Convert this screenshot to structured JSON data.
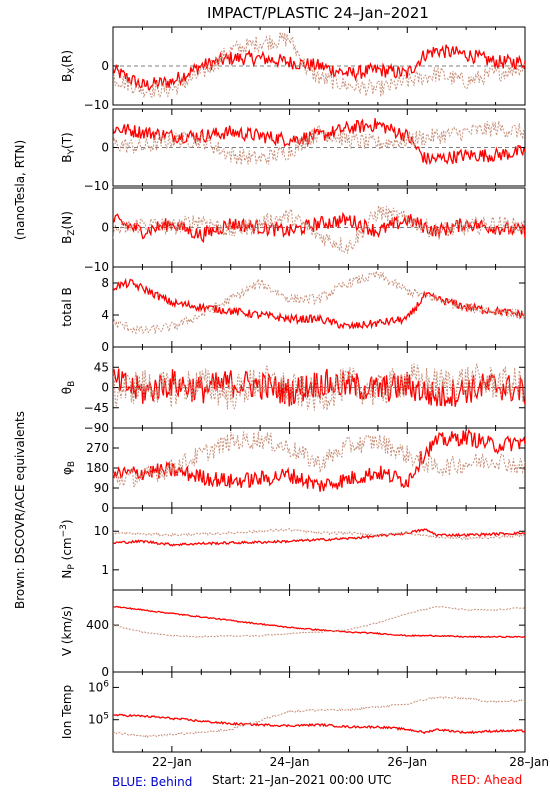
{
  "title": "IMPACT/PLASTIC   24–Jan–2021",
  "left_label": "(nanoTesla, RTN)",
  "side_label": "Brown: DSCOVR/ACE equivalents",
  "footer": {
    "behind": "BLUE: Behind",
    "start": "Start: 21–Jan–2021 00:00 UTC",
    "ahead": "RED: Ahead"
  },
  "colors": {
    "ahead": "#ff0000",
    "dscovr": "#c8907a",
    "behind": "#0000cc",
    "side_label": "#c8907a"
  },
  "x_axis": {
    "ticks": [
      "22–Jan",
      "24–Jan",
      "26–Jan",
      "28–Jan"
    ],
    "tick_days": [
      22,
      24,
      26,
      28
    ],
    "minor_days": [
      21.5,
      22.5,
      23,
      23.5,
      24.5,
      25,
      25.5,
      26.5,
      27,
      27.5
    ],
    "range_days": [
      21,
      28
    ]
  },
  "chart_data": {
    "type": "line",
    "x_unit": "day of Jan 2021",
    "panels": [
      {
        "label": "B_X(R)",
        "ylim": [
          -10,
          10
        ],
        "ticks": [
          "0",
          "−10"
        ],
        "tick_values": [
          0,
          -10
        ],
        "grid": [
          0
        ],
        "series": [
          {
            "name": "Ahead",
            "x": [
              21.0,
              21.5,
              22.0,
              22.5,
              23.0,
              23.5,
              24.0,
              24.5,
              25.0,
              25.5,
              26.0,
              26.3,
              26.5,
              27.0,
              27.5,
              28.0
            ],
            "y": [
              -1,
              -5,
              -4,
              0,
              2,
              2,
              1,
              0,
              -2,
              -1,
              -2,
              3,
              4,
              3,
              1,
              1
            ]
          },
          {
            "name": "DSCOVR/ACE",
            "x": [
              21.0,
              21.5,
              22.0,
              22.5,
              23.0,
              23.5,
              24.0,
              24.3,
              24.5,
              25.0,
              25.5,
              26.0,
              26.5,
              27.0,
              27.5,
              28.0
            ],
            "y": [
              -3,
              -6,
              -6,
              -2,
              4,
              6,
              7,
              -1,
              -3,
              -5,
              -6,
              -4,
              -2,
              -4,
              -2,
              0
            ]
          }
        ]
      },
      {
        "label": "B_Y(T)",
        "ylim": [
          -10,
          10
        ],
        "ticks": [
          "0",
          "−10"
        ],
        "tick_values": [
          0,
          -10
        ],
        "grid": [
          0
        ],
        "series": [
          {
            "name": "Ahead",
            "x": [
              21.0,
              21.5,
              22.0,
              22.5,
              23.0,
              23.5,
              24.0,
              24.5,
              25.0,
              25.5,
              26.0,
              26.3,
              26.5,
              27.0,
              27.5,
              28.0
            ],
            "y": [
              5,
              4,
              3,
              3,
              4,
              3,
              2,
              3,
              5,
              6,
              3,
              -3,
              -3,
              -2,
              -2,
              -1
            ]
          },
          {
            "name": "DSCOVR/ACE",
            "x": [
              21.0,
              21.5,
              22.0,
              22.5,
              23.0,
              23.5,
              24.0,
              24.5,
              25.0,
              25.5,
              26.0,
              26.5,
              27.0,
              27.5,
              28.0
            ],
            "y": [
              1,
              0,
              2,
              2,
              -2,
              -3,
              -1,
              4,
              2,
              1,
              2,
              3,
              4,
              5,
              4
            ]
          }
        ]
      },
      {
        "label": "B_Z(N)",
        "ylim": [
          -10,
          10
        ],
        "ticks": [
          "0",
          "−10"
        ],
        "tick_values": [
          0,
          -10
        ],
        "grid": [
          0
        ],
        "series": [
          {
            "name": "Ahead",
            "x": [
              21.0,
              21.5,
              22.0,
              22.5,
              23.0,
              23.5,
              24.0,
              24.5,
              25.0,
              25.5,
              26.0,
              26.5,
              27.0,
              27.5,
              28.0
            ],
            "y": [
              2,
              -1,
              1,
              -2,
              1,
              0,
              -1,
              1,
              2,
              -1,
              2,
              -1,
              1,
              0,
              -1
            ]
          },
          {
            "name": "DSCOVR/ACE",
            "x": [
              21.0,
              21.5,
              22.0,
              22.5,
              23.0,
              23.5,
              24.0,
              24.5,
              25.0,
              25.5,
              26.0,
              26.5,
              27.0,
              27.5,
              28.0
            ],
            "y": [
              -1,
              1,
              0,
              2,
              -1,
              1,
              3,
              -2,
              -5,
              4,
              2,
              -1,
              0,
              1,
              0
            ]
          }
        ]
      },
      {
        "label": "total B",
        "ylim": [
          0,
          10
        ],
        "ticks": [
          "8",
          "4",
          "0"
        ],
        "tick_values": [
          8,
          4,
          0
        ],
        "grid": [],
        "series": [
          {
            "name": "Ahead",
            "x": [
              21.0,
              21.3,
              21.6,
              22.0,
              22.5,
              23.0,
              23.5,
              24.0,
              24.5,
              25.0,
              25.5,
              26.0,
              26.3,
              26.5,
              27.0,
              27.5,
              28.0
            ],
            "y": [
              7.5,
              8,
              7,
              5.5,
              5,
              4.5,
              4,
              3.5,
              3.5,
              2.5,
              3,
              3.5,
              6.5,
              6,
              5,
              4.5,
              4
            ]
          },
          {
            "name": "DSCOVR/ACE",
            "x": [
              21.0,
              21.5,
              22.0,
              22.5,
              23.0,
              23.5,
              24.0,
              24.5,
              25.0,
              25.5,
              26.0,
              26.5,
              27.0,
              27.5,
              28.0
            ],
            "y": [
              3,
              2,
              2.5,
              4,
              6,
              8,
              6,
              6,
              8,
              9,
              7,
              6,
              5,
              4.5,
              4
            ]
          }
        ]
      },
      {
        "label": "θ_B",
        "ylim": [
          -90,
          90
        ],
        "ticks": [
          "45",
          "0",
          "−45",
          "−90"
        ],
        "tick_values": [
          45,
          0,
          -45,
          -90
        ],
        "grid": [
          0
        ],
        "series": [
          {
            "name": "Ahead",
            "x": [
              21.0,
              21.5,
              22.0,
              22.5,
              23.0,
              23.5,
              24.0,
              24.5,
              25.0,
              25.5,
              26.0,
              26.5,
              27.0,
              27.5,
              28.0
            ],
            "y": [
              15,
              -10,
              10,
              -5,
              10,
              5,
              -10,
              10,
              5,
              -5,
              5,
              -20,
              -5,
              5,
              -10
            ]
          },
          {
            "name": "DSCOVR/ACE",
            "x": [
              21.0,
              21.5,
              22.0,
              22.5,
              23.0,
              23.5,
              24.0,
              24.5,
              25.0,
              25.5,
              26.0,
              26.5,
              27.0,
              27.5,
              28.0
            ],
            "y": [
              -10,
              5,
              -5,
              10,
              -15,
              15,
              -5,
              -20,
              10,
              -10,
              20,
              5,
              15,
              10,
              5
            ]
          }
        ]
      },
      {
        "label": "φ_B",
        "ylim": [
          0,
          360
        ],
        "ticks": [
          "270",
          "180",
          "90",
          "0"
        ],
        "tick_values": [
          270,
          180,
          90,
          0
        ],
        "grid": [],
        "series": [
          {
            "name": "Ahead",
            "x": [
              21.0,
              21.5,
              22.0,
              22.5,
              23.0,
              23.5,
              24.0,
              24.5,
              25.0,
              25.5,
              26.0,
              26.3,
              26.5,
              27.0,
              27.5,
              28.0
            ],
            "y": [
              150,
              160,
              170,
              140,
              120,
              130,
              150,
              100,
              130,
              160,
              120,
              250,
              300,
              320,
              280,
              300
            ]
          },
          {
            "name": "DSCOVR/ACE",
            "x": [
              21.0,
              21.5,
              22.0,
              22.5,
              23.0,
              23.5,
              24.0,
              24.5,
              25.0,
              25.5,
              26.0,
              26.5,
              27.0,
              27.5,
              28.0
            ],
            "y": [
              130,
              140,
              180,
              240,
              300,
              310,
              270,
              200,
              280,
              300,
              240,
              180,
              200,
              220,
              180
            ]
          }
        ]
      },
      {
        "label": "N_P (cm^-3)",
        "scale": "log",
        "ylim": [
          0.3,
          40
        ],
        "ticks": [
          "10",
          "1"
        ],
        "tick_values": [
          10,
          1
        ],
        "grid": [],
        "series": [
          {
            "name": "Ahead",
            "x": [
              21.0,
              21.5,
              22.0,
              22.5,
              23.0,
              23.5,
              24.0,
              24.5,
              25.0,
              25.5,
              26.0,
              26.3,
              26.5,
              27.0,
              27.5,
              28.0
            ],
            "y": [
              5,
              5.5,
              4.5,
              4.8,
              5,
              5.2,
              5.5,
              6,
              6.5,
              7.5,
              9,
              11,
              8,
              8,
              8.5,
              9
            ]
          },
          {
            "name": "DSCOVR/ACE",
            "x": [
              21.0,
              21.5,
              22.0,
              22.5,
              23.0,
              23.5,
              24.0,
              24.5,
              25.0,
              25.5,
              26.0,
              26.5,
              27.0,
              27.5,
              28.0
            ],
            "y": [
              9,
              8.5,
              8,
              8.5,
              9,
              10,
              11,
              9,
              9,
              8,
              9,
              7,
              6.5,
              7,
              8
            ]
          }
        ]
      },
      {
        "label": "V (km/s)",
        "ylim": [
          0,
          700
        ],
        "ticks": [
          "400",
          "0"
        ],
        "tick_values": [
          400,
          0
        ],
        "grid": [],
        "series": [
          {
            "name": "Ahead",
            "x": [
              21.0,
              21.5,
              22.0,
              22.5,
              23.0,
              23.5,
              24.0,
              24.5,
              25.0,
              25.5,
              26.0,
              26.5,
              27.0,
              27.5,
              28.0
            ],
            "y": [
              560,
              530,
              500,
              470,
              440,
              410,
              380,
              360,
              340,
              330,
              310,
              310,
              300,
              300,
              300
            ]
          },
          {
            "name": "DSCOVR/ACE",
            "x": [
              21.0,
              21.5,
              22.0,
              22.5,
              23.0,
              23.5,
              24.0,
              24.5,
              25.0,
              25.5,
              26.0,
              26.5,
              27.0,
              27.5,
              28.0
            ],
            "y": [
              400,
              340,
              310,
              300,
              310,
              310,
              330,
              340,
              360,
              420,
              500,
              560,
              530,
              530,
              550
            ]
          }
        ]
      },
      {
        "label": "Ion Temp",
        "scale": "log",
        "ylim": [
          10000,
          3000000
        ],
        "ticks": [
          "10^6",
          "10^5"
        ],
        "tick_values": [
          1000000,
          100000
        ],
        "grid": [],
        "series": [
          {
            "name": "Ahead",
            "x": [
              21.0,
              21.5,
              22.0,
              22.5,
              23.0,
              23.5,
              24.0,
              24.5,
              25.0,
              25.5,
              26.0,
              26.3,
              26.5,
              27.0,
              27.5,
              28.0
            ],
            "y": [
              140000,
              130000,
              110000,
              90000,
              75000,
              70000,
              65000,
              70000,
              60000,
              60000,
              50000,
              40000,
              50000,
              40000,
              45000,
              45000
            ]
          },
          {
            "name": "DSCOVR/ACE",
            "x": [
              21.0,
              21.5,
              22.0,
              22.5,
              23.0,
              23.5,
              24.0,
              24.5,
              25.0,
              25.5,
              26.0,
              26.5,
              27.0,
              27.5,
              28.0
            ],
            "y": [
              40000,
              30000,
              35000,
              40000,
              50000,
              90000,
              180000,
              200000,
              200000,
              250000,
              300000,
              500000,
              450000,
              350000,
              400000
            ]
          }
        ]
      }
    ]
  }
}
